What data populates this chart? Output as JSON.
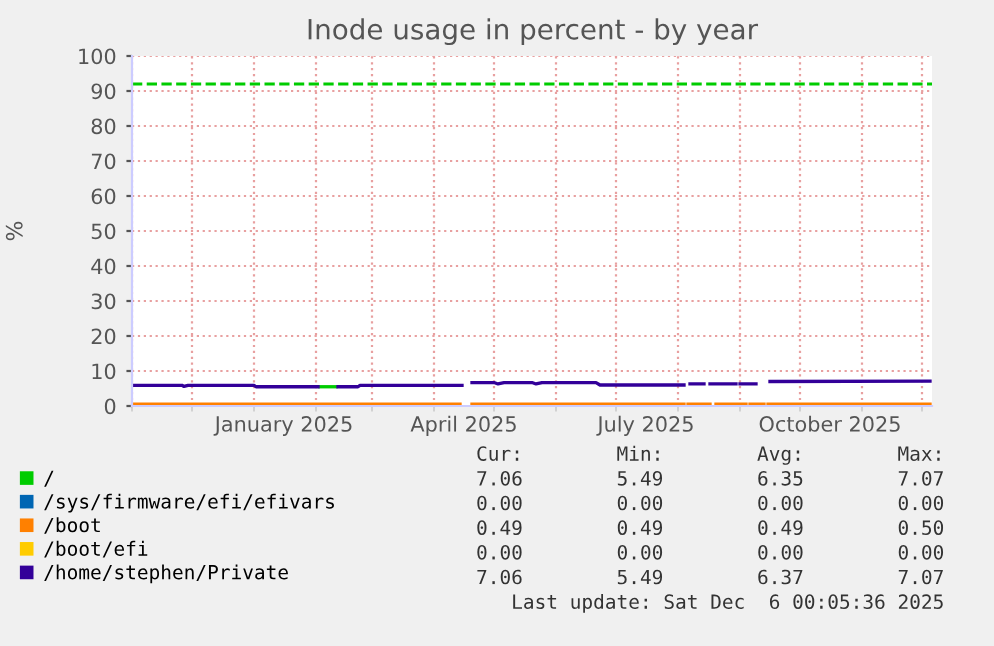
{
  "chart_data": {
    "type": "line",
    "title": "Inode usage in percent - by year",
    "ylabel": "%",
    "series": [
      {
        "name": "/",
        "color": "#00cc00",
        "x": [
          "2025-02-03",
          "2025-02-11"
        ],
        "values": [
          5.5,
          5.5
        ]
      },
      {
        "name": "/sys/firmware/efi/efivars",
        "color": "#0066b3"
      },
      {
        "name": "/boot",
        "color": "#ff8000",
        "x": [
          "2024-11-01",
          "2025-04-14",
          "2025-04-16",
          "2025-04-20",
          "2025-08-04",
          "2025-08-05",
          "2025-08-06",
          "2025-08-17",
          "2025-08-18",
          "2025-08-20",
          "2025-09-04",
          "2025-09-05",
          "2025-09-06",
          "2025-09-13",
          "2025-09-14",
          "2025-09-15",
          "2025-12-05"
        ],
        "values": [
          0.5,
          0.5,
          null,
          0.5,
          0.5,
          null,
          0.5,
          0.5,
          null,
          0.5,
          0.5,
          null,
          0.5,
          0.5,
          null,
          0.5,
          0.5
        ]
      },
      {
        "name": "/boot/efi",
        "color": "#ffcc00"
      },
      {
        "name": "/home/stephen/Private",
        "color": "#330099",
        "x": [
          "2024-11-01",
          "2024-11-26",
          "2024-11-27",
          "2024-11-29",
          "2025-01-01",
          "2025-01-02",
          "2025-02-02",
          "2025-02-07",
          "2025-02-12",
          "2025-02-22",
          "2025-02-23",
          "2025-04-15",
          "2025-04-17",
          "2025-04-20",
          "2025-05-01",
          "2025-05-03",
          "2025-05-06",
          "2025-05-20",
          "2025-05-22",
          "2025-05-25",
          "2025-06-21",
          "2025-06-23",
          "2025-08-04",
          "2025-08-05",
          "2025-08-07",
          "2025-08-14",
          "2025-08-15",
          "2025-08-17",
          "2025-08-30",
          "2025-08-31",
          "2025-09-01",
          "2025-09-09",
          "2025-09-12",
          "2025-09-16",
          "2025-12-05"
        ],
        "values": [
          5.9,
          5.9,
          5.6,
          5.9,
          5.9,
          5.5,
          5.5,
          null,
          5.5,
          5.5,
          5.9,
          5.9,
          null,
          6.7,
          6.7,
          6.3,
          6.7,
          6.7,
          6.3,
          6.7,
          6.7,
          6.0,
          6.0,
          null,
          6.3,
          6.3,
          null,
          6.3,
          6.3,
          null,
          6.3,
          6.3,
          null,
          7.0,
          7.1
        ]
      }
    ],
    "xlim": [
      "2024-11-01",
      "2025-12-06"
    ],
    "xticks": [
      {
        "value": "2025-01-16",
        "label": "January 2025"
      },
      {
        "value": "2025-04-16",
        "label": "April 2025"
      },
      {
        "value": "2025-07-16",
        "label": "July 2025"
      },
      {
        "value": "2025-10-16",
        "label": "October 2025"
      }
    ],
    "ylim": [
      0,
      100
    ],
    "yticks": [
      0,
      10,
      20,
      30,
      40,
      50,
      60,
      70,
      80,
      90,
      100
    ],
    "ref_lines": [
      {
        "axis": "y",
        "value": 92,
        "label": null,
        "color": "#00cc00",
        "line_style": "dashed"
      }
    ],
    "grid": true,
    "legend": "bottom",
    "marker": "none",
    "line_style": "solid",
    "annotations": [
      "Cur:        Min:        Avg:        Max:",
      "7.06        5.49        6.35        7.07",
      "0.00        0.00        0.00        0.00",
      "0.49        0.49        0.49        0.50",
      "0.00        0.00        0.00        0.00",
      "7.06        5.49        6.37        7.07",
      "Last update: Sat Dec  6 00:05:36 2025"
    ]
  }
}
